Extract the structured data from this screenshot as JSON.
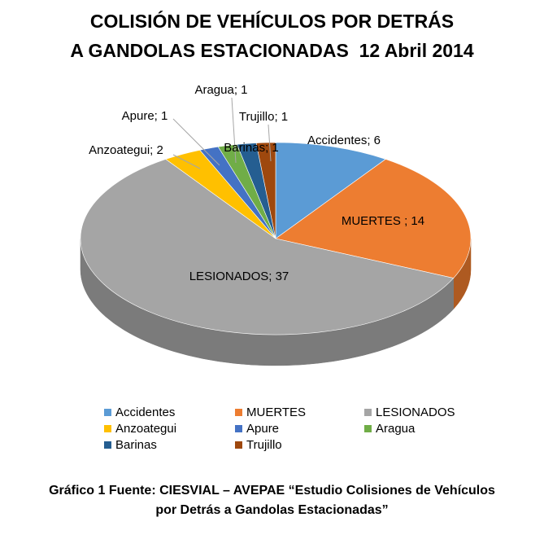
{
  "chart_data": {
    "type": "pie",
    "style": "3d",
    "title": [
      "COLISIÓN DE VEHÍCULOS POR DETRÁS",
      "A GANDOLAS ESTACIONADAS  12 Abril 2014"
    ],
    "slices": [
      {
        "name": "Accidentes",
        "value": 6,
        "label": "Accidentes; 6",
        "color": "#5B9BD5",
        "side_color": "#41719C"
      },
      {
        "name": "MUERTES",
        "value": 14,
        "label": "MUERTES ; 14",
        "color": "#ED7D31",
        "side_color": "#AE5A21"
      },
      {
        "name": "LESIONADOS",
        "value": 37,
        "label": "LESIONADOS; 37",
        "color": "#A5A5A5",
        "side_color": "#7B7B7B"
      },
      {
        "name": "Anzoategui",
        "value": 2,
        "label": "Anzoategui; 2",
        "color": "#FFC000",
        "side_color": "#BC8C00"
      },
      {
        "name": "Apure",
        "value": 1,
        "label": "Apure; 1",
        "color": "#4472C4",
        "side_color": "#2F528F"
      },
      {
        "name": "Aragua",
        "value": 1,
        "label": "Aragua; 1",
        "color": "#70AD47",
        "side_color": "#507E32"
      },
      {
        "name": "Barinas",
        "value": 1,
        "label": "Barinas; 1",
        "color": "#255E91",
        "side_color": "#1A4469"
      },
      {
        "name": "Trujillo",
        "value": 1,
        "label": "Trujillo; 1",
        "color": "#9E480E",
        "side_color": "#73340A"
      }
    ],
    "legend_position": "bottom"
  },
  "caption": [
    "Gráfico 1 Fuente: CIESVIAL – AVEPAE “Estudio Colisiones de Vehículos",
    "por Detrás a Gandolas Estacionadas”"
  ]
}
